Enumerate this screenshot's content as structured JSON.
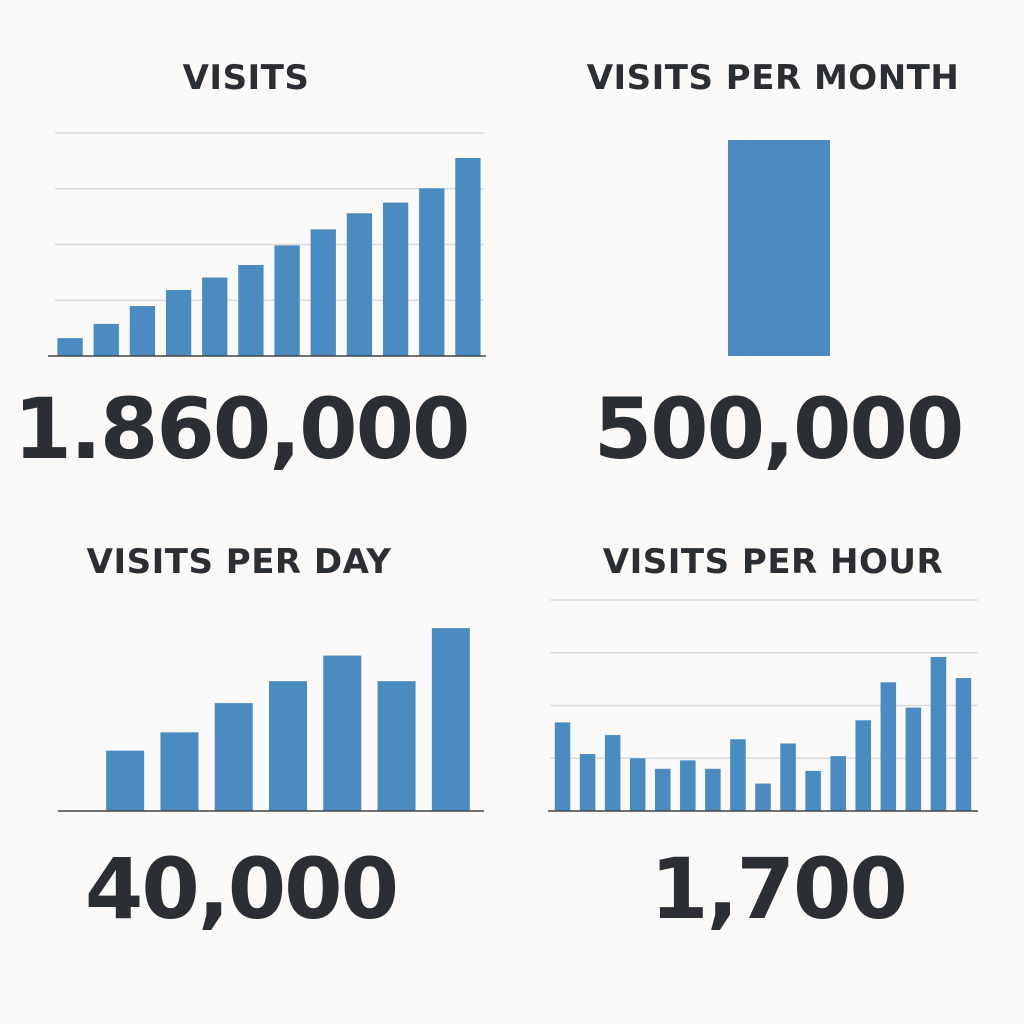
{
  "colors": {
    "bar": "#4a8bc2",
    "text": "#2b2f33",
    "grid": "#dcdcdc",
    "axis": "#444444",
    "background": "#fbfaf8"
  },
  "panels": [
    {
      "title": "VISITS",
      "total": "1.860,000"
    },
    {
      "title": "VISITS PER MONTH",
      "total": "500,000"
    },
    {
      "title": "VISITS PER DAY",
      "total": "40,000"
    },
    {
      "title": "VISITS PER HOUR",
      "total": "1,700"
    }
  ],
  "chart_data": [
    {
      "type": "bar",
      "title": "VISITS",
      "values": [
        1.0,
        1.8,
        2.8,
        3.7,
        4.4,
        5.1,
        6.2,
        7.1,
        8.0,
        8.6,
        9.4,
        11.1
      ],
      "ylim": [
        0,
        12.5
      ],
      "grid": true,
      "gridlines": 4
    },
    {
      "type": "bar",
      "title": "VISITS PER MONTH",
      "values": [
        1
      ],
      "ylim": [
        0,
        1
      ],
      "grid": false,
      "gridlines": 0
    },
    {
      "type": "bar",
      "title": "VISITS PER DAY",
      "values": [
        3.3,
        4.3,
        5.9,
        7.1,
        8.5,
        7.1,
        10.0
      ],
      "ylim": [
        0,
        10.5
      ],
      "grid": false,
      "gridlines": 0
    },
    {
      "type": "bar",
      "title": "VISITS PER HOUR",
      "values": [
        4.2,
        2.7,
        3.6,
        2.5,
        2.0,
        2.4,
        2.0,
        3.4,
        1.3,
        3.2,
        1.9,
        2.6,
        4.3,
        6.1,
        4.9,
        7.3,
        6.3
      ],
      "ylim": [
        0,
        10
      ],
      "grid": true,
      "gridlines": 4
    }
  ]
}
